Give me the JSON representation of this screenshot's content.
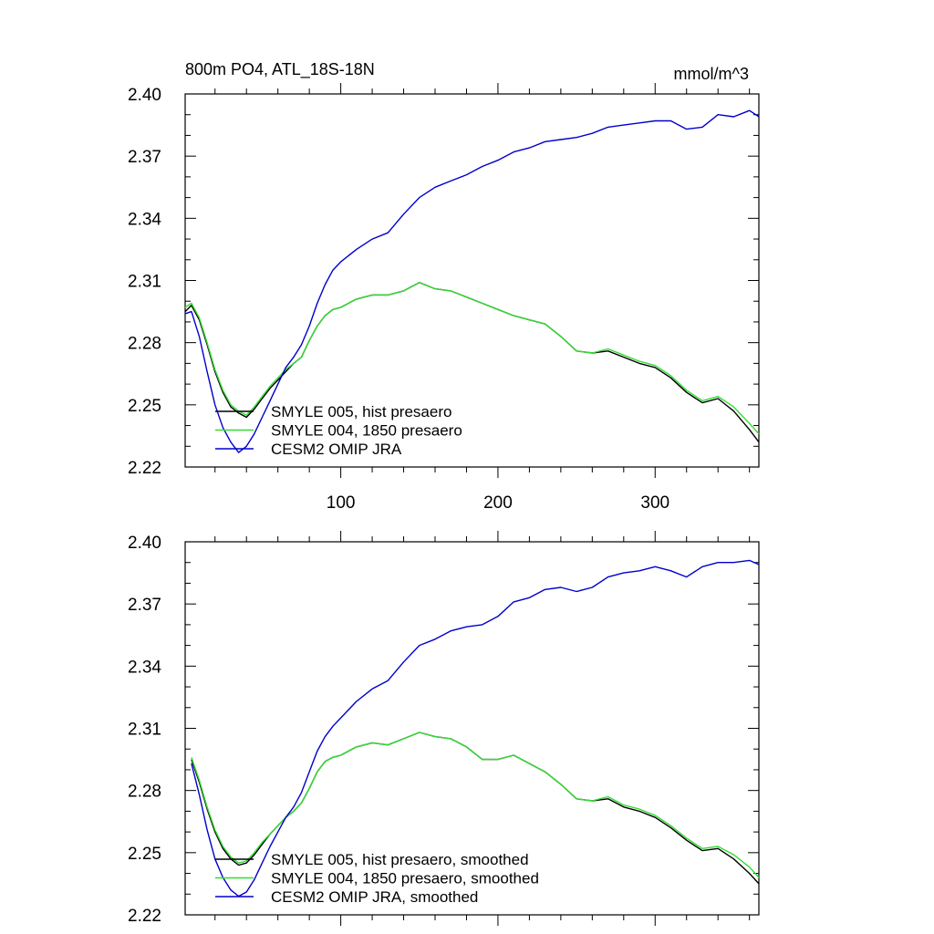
{
  "chart_data": [
    {
      "type": "line",
      "title": "800m PO4, ATL_18S-18N",
      "units": "mmol/m^3",
      "xlim": [
        1,
        366
      ],
      "ylim": [
        2.22,
        2.4
      ],
      "yticks": [
        "2.40",
        "2.37",
        "2.34",
        "2.31",
        "2.28",
        "2.25",
        "2.22"
      ],
      "xticks": [
        "100",
        "200",
        "300"
      ],
      "legend_position": "bottom-left",
      "series": [
        {
          "name": "SMYLE 005, hist presaero",
          "color": "#000000",
          "x": [
            1,
            5,
            10,
            15,
            20,
            25,
            30,
            35,
            40,
            45,
            50,
            55,
            60,
            65,
            70,
            75,
            80,
            85,
            90,
            95,
            100,
            110,
            120,
            130,
            140,
            150,
            160,
            170,
            180,
            190,
            200,
            210,
            220,
            230,
            240,
            250,
            260,
            270,
            280,
            290,
            300,
            310,
            320,
            330,
            340,
            350,
            360,
            366
          ],
          "y": [
            2.295,
            2.298,
            2.291,
            2.279,
            2.266,
            2.256,
            2.249,
            2.246,
            2.244,
            2.248,
            2.253,
            2.258,
            2.262,
            2.266,
            2.27,
            2.273,
            2.281,
            2.288,
            2.293,
            2.296,
            2.297,
            2.301,
            2.303,
            2.303,
            2.305,
            2.309,
            2.306,
            2.305,
            2.302,
            2.299,
            2.296,
            2.293,
            2.291,
            2.289,
            2.283,
            2.276,
            2.275,
            2.276,
            2.273,
            2.27,
            2.268,
            2.263,
            2.256,
            2.251,
            2.253,
            2.247,
            2.238,
            2.232
          ]
        },
        {
          "name": "SMYLE 004, 1850 presaero",
          "color": "#33dd33",
          "x": [
            1,
            5,
            10,
            15,
            20,
            25,
            30,
            35,
            40,
            45,
            50,
            55,
            60,
            65,
            70,
            75,
            80,
            85,
            90,
            95,
            100,
            110,
            120,
            130,
            140,
            150,
            160,
            170,
            180,
            190,
            200,
            210,
            220,
            230,
            240,
            250,
            260,
            270,
            280,
            290,
            300,
            310,
            320,
            330,
            340,
            350,
            360,
            366
          ],
          "y": [
            2.297,
            2.299,
            2.292,
            2.28,
            2.267,
            2.257,
            2.25,
            2.247,
            2.245,
            2.249,
            2.254,
            2.259,
            2.263,
            2.267,
            2.27,
            2.273,
            2.281,
            2.288,
            2.293,
            2.296,
            2.297,
            2.301,
            2.303,
            2.303,
            2.305,
            2.309,
            2.306,
            2.305,
            2.302,
            2.299,
            2.296,
            2.293,
            2.291,
            2.289,
            2.283,
            2.276,
            2.275,
            2.277,
            2.274,
            2.271,
            2.269,
            2.264,
            2.257,
            2.252,
            2.254,
            2.249,
            2.241,
            2.236
          ]
        },
        {
          "name": "CESM2 OMIP JRA",
          "color": "#0000cc",
          "x": [
            1,
            5,
            10,
            15,
            20,
            25,
            30,
            35,
            40,
            45,
            50,
            55,
            60,
            65,
            70,
            75,
            80,
            85,
            90,
            95,
            100,
            110,
            120,
            130,
            140,
            150,
            160,
            170,
            180,
            190,
            200,
            210,
            220,
            230,
            240,
            250,
            260,
            270,
            280,
            290,
            300,
            310,
            320,
            330,
            340,
            350,
            360,
            366
          ],
          "y": [
            2.294,
            2.295,
            2.283,
            2.266,
            2.25,
            2.239,
            2.232,
            2.227,
            2.23,
            2.236,
            2.244,
            2.252,
            2.26,
            2.268,
            2.273,
            2.279,
            2.288,
            2.299,
            2.308,
            2.315,
            2.319,
            2.325,
            2.33,
            2.333,
            2.342,
            2.35,
            2.355,
            2.358,
            2.361,
            2.365,
            2.368,
            2.372,
            2.374,
            2.377,
            2.378,
            2.379,
            2.381,
            2.384,
            2.385,
            2.386,
            2.387,
            2.387,
            2.383,
            2.384,
            2.39,
            2.389,
            2.392,
            2.389
          ]
        }
      ]
    },
    {
      "type": "line",
      "xlim": [
        1,
        366
      ],
      "ylim": [
        2.22,
        2.4
      ],
      "yticks": [
        "2.40",
        "2.37",
        "2.34",
        "2.31",
        "2.28",
        "2.25",
        "2.22"
      ],
      "legend_position": "bottom-left",
      "series": [
        {
          "name": "SMYLE 005, hist presaero, smoothed",
          "color": "#000000",
          "x": [
            5,
            10,
            15,
            20,
            25,
            30,
            35,
            40,
            45,
            50,
            55,
            60,
            65,
            70,
            75,
            80,
            85,
            90,
            95,
            100,
            110,
            120,
            130,
            140,
            150,
            160,
            170,
            180,
            190,
            200,
            210,
            220,
            230,
            240,
            250,
            260,
            270,
            280,
            290,
            300,
            310,
            320,
            330,
            340,
            350,
            360,
            366
          ],
          "y": [
            2.295,
            2.284,
            2.271,
            2.26,
            2.252,
            2.247,
            2.244,
            2.245,
            2.249,
            2.254,
            2.259,
            2.263,
            2.267,
            2.27,
            2.274,
            2.281,
            2.289,
            2.294,
            2.296,
            2.297,
            2.301,
            2.303,
            2.302,
            2.305,
            2.308,
            2.306,
            2.305,
            2.301,
            2.295,
            2.295,
            2.297,
            2.293,
            2.289,
            2.283,
            2.276,
            2.275,
            2.276,
            2.272,
            2.27,
            2.267,
            2.262,
            2.256,
            2.251,
            2.252,
            2.247,
            2.24,
            2.235
          ]
        },
        {
          "name": "SMYLE 004, 1850 presaero, smoothed",
          "color": "#33dd33",
          "x": [
            5,
            10,
            15,
            20,
            25,
            30,
            35,
            40,
            45,
            50,
            55,
            60,
            65,
            70,
            75,
            80,
            85,
            90,
            95,
            100,
            110,
            120,
            130,
            140,
            150,
            160,
            170,
            180,
            190,
            200,
            210,
            220,
            230,
            240,
            250,
            260,
            270,
            280,
            290,
            300,
            310,
            320,
            330,
            340,
            350,
            360,
            366
          ],
          "y": [
            2.296,
            2.285,
            2.272,
            2.261,
            2.253,
            2.248,
            2.245,
            2.246,
            2.25,
            2.255,
            2.259,
            2.263,
            2.267,
            2.27,
            2.274,
            2.281,
            2.289,
            2.294,
            2.296,
            2.297,
            2.301,
            2.303,
            2.302,
            2.305,
            2.308,
            2.306,
            2.305,
            2.301,
            2.295,
            2.295,
            2.297,
            2.293,
            2.289,
            2.283,
            2.276,
            2.275,
            2.277,
            2.273,
            2.271,
            2.268,
            2.263,
            2.257,
            2.252,
            2.253,
            2.249,
            2.243,
            2.238
          ]
        },
        {
          "name": "CESM2 OMIP JRA, smoothed",
          "color": "#0000cc",
          "x": [
            5,
            10,
            15,
            20,
            25,
            30,
            35,
            40,
            45,
            50,
            55,
            60,
            65,
            70,
            75,
            80,
            85,
            90,
            95,
            100,
            110,
            120,
            130,
            140,
            150,
            160,
            170,
            180,
            190,
            200,
            210,
            220,
            230,
            240,
            250,
            260,
            270,
            280,
            290,
            300,
            310,
            320,
            330,
            340,
            350,
            360,
            366
          ],
          "y": [
            2.293,
            2.278,
            2.261,
            2.247,
            2.238,
            2.232,
            2.229,
            2.231,
            2.237,
            2.245,
            2.253,
            2.26,
            2.267,
            2.272,
            2.279,
            2.289,
            2.299,
            2.306,
            2.311,
            2.315,
            2.323,
            2.329,
            2.333,
            2.342,
            2.35,
            2.353,
            2.357,
            2.359,
            2.36,
            2.364,
            2.371,
            2.373,
            2.377,
            2.378,
            2.376,
            2.378,
            2.383,
            2.385,
            2.386,
            2.388,
            2.386,
            2.383,
            2.388,
            2.39,
            2.39,
            2.391,
            2.389
          ]
        }
      ]
    }
  ]
}
